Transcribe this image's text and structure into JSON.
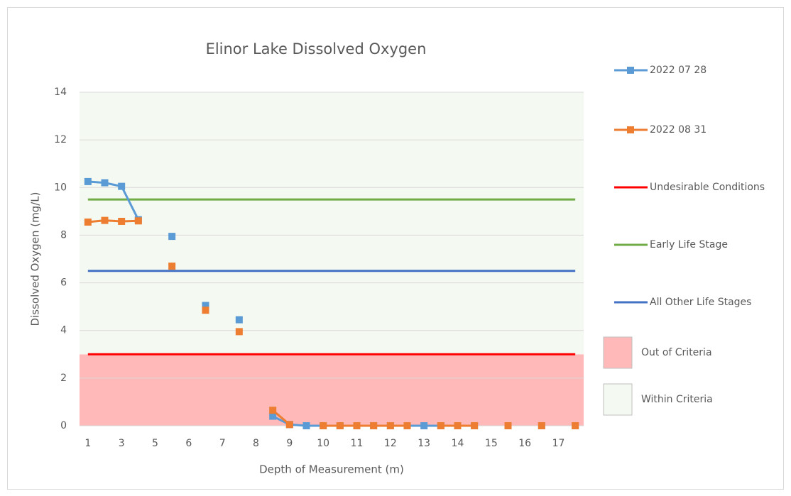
{
  "chart_data": {
    "type": "line",
    "title": "Elinor Lake Dissolved Oxygen",
    "x_label": "Depth of Measurement (m)",
    "y_label": "Dissolved Oxygen (mg/L)",
    "categories": [
      "1",
      null,
      "3",
      null,
      "5",
      null,
      "6",
      null,
      "7",
      null,
      "8",
      null,
      "9",
      null,
      "10",
      null,
      "11",
      null,
      "12",
      null,
      "13",
      null,
      "14",
      null,
      "15",
      null,
      "16",
      null,
      "17",
      null
    ],
    "series": [
      {
        "name": "2022 07 28",
        "color": "#5b9bd5",
        "values": [
          10.25,
          10.2,
          10.05,
          8.65,
          null,
          7.95,
          null,
          5.05,
          null,
          4.45,
          null,
          0.4,
          0.05,
          0,
          0,
          0,
          0,
          0,
          0,
          0,
          0,
          0,
          0,
          0,
          null,
          0,
          null,
          0,
          null,
          0
        ]
      },
      {
        "name": "2022 08 31",
        "color": "#ed7d31",
        "values": [
          8.55,
          8.62,
          8.58,
          8.6,
          null,
          6.7,
          null,
          4.85,
          null,
          3.95,
          null,
          0.65,
          0.05,
          null,
          0,
          0,
          0,
          0,
          0,
          0,
          null,
          0,
          0,
          0,
          null,
          0,
          null,
          0,
          null,
          0
        ]
      }
    ],
    "reference_lines": [
      {
        "name": "Undesirable Conditions",
        "color": "#ff0000",
        "value": 3
      },
      {
        "name": "Early Life Stage",
        "color": "#70ad47",
        "value": 9.5
      },
      {
        "name": "All Other Life Stages",
        "color": "#4472c4",
        "value": 6.5
      }
    ],
    "bands": [
      {
        "name": "Out of Criteria",
        "color": "#ffb9b9",
        "from": 0,
        "to": 3
      },
      {
        "name": "Within Criteria",
        "color": "#f4f9f1",
        "from": 3,
        "to": 14
      }
    ],
    "ylim": [
      0,
      14
    ],
    "yticks": [
      0,
      2,
      4,
      6,
      8,
      10,
      12,
      14
    ],
    "grid": true
  }
}
